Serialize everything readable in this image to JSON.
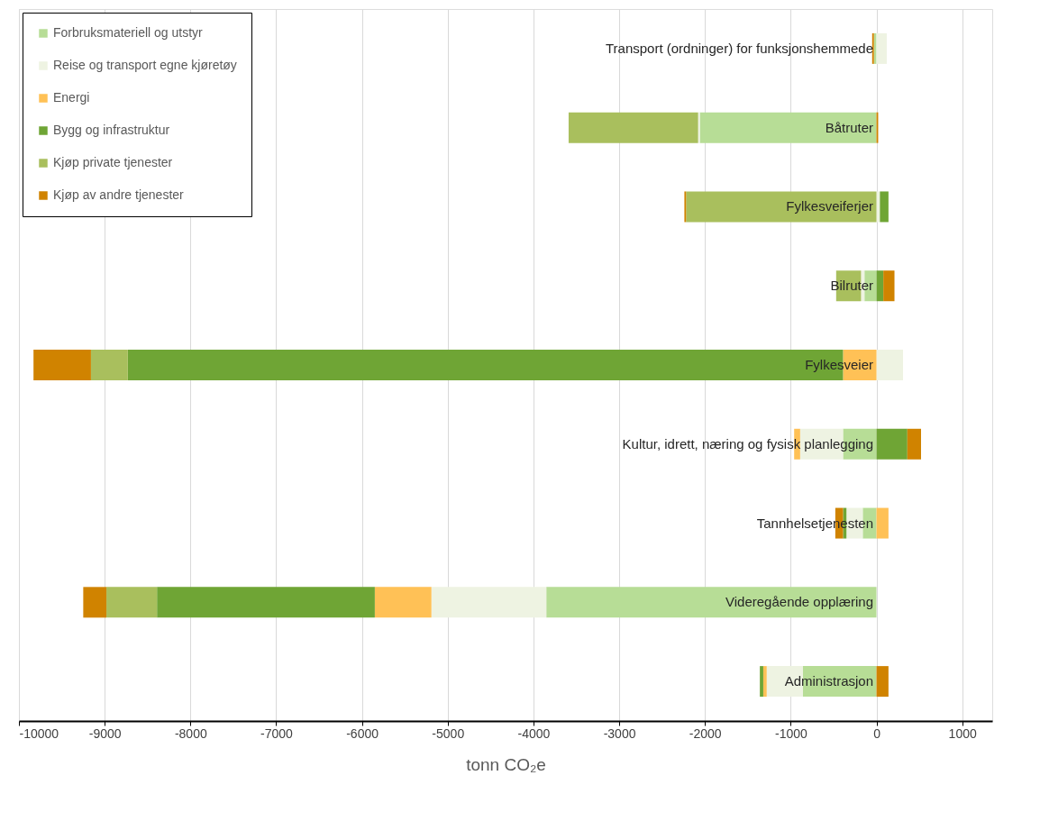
{
  "chart_data": {
    "type": "bar",
    "orientation": "horizontal",
    "stacked": true,
    "categories": [
      "Transport (ordninger) for funksjonshemmede",
      "Båtruter",
      "Fylkesveiferjer",
      "Bilruter",
      "Fylkesveier",
      "Kultur, idrett, næring og fysisk planlegging",
      "Tannhelsetjenesten",
      "Videregående opplæring",
      "Administrasjon"
    ],
    "series": [
      {
        "name": "Forbruksmateriell og utstyr",
        "color": "#b7dd96",
        "values": [
          -30,
          -2060,
          null,
          -140,
          null,
          -390,
          -160,
          -3850,
          -860
        ]
      },
      {
        "name": "Reise og transport egne kjøretøy",
        "color": "#eef3e2",
        "values": [
          120,
          -20,
          40,
          -40,
          310,
          -500,
          -190,
          -1340,
          -420
        ]
      },
      {
        "name": "Energi",
        "color": "#ffc156",
        "values": [
          null,
          null,
          null,
          null,
          -390,
          -70,
          140,
          -660,
          -40
        ]
      },
      {
        "name": "Bygg og infrastruktur",
        "color": "#6fa535",
        "values": [
          null,
          null,
          100,
          80,
          -8340,
          360,
          -40,
          -2540,
          -40
        ]
      },
      {
        "name": "Kjøp private tjenester",
        "color": "#a9bf5d",
        "values": [
          null,
          -1510,
          -2220,
          -290,
          -430,
          null,
          null,
          -590,
          null
        ]
      },
      {
        "name": "Kjøp av andre tjenester",
        "color": "#d08300",
        "values": [
          -20,
          20,
          -20,
          130,
          -670,
          160,
          -90,
          -270,
          140
        ]
      }
    ],
    "xlim": [
      -10000,
      1350
    ],
    "xticks": [
      {
        "value": -10000,
        "label": "-10000"
      },
      {
        "value": -9000,
        "label": "-9000"
      },
      {
        "value": -8000,
        "label": "-8000"
      },
      {
        "value": -7000,
        "label": "-7000"
      },
      {
        "value": -6000,
        "label": "-6000"
      },
      {
        "value": -5000,
        "label": "-5000"
      },
      {
        "value": -4000,
        "label": "-4000"
      },
      {
        "value": -3000,
        "label": "-3000"
      },
      {
        "value": -2000,
        "label": "-2000"
      },
      {
        "value": -1000,
        "label": "-1000"
      },
      0,
      {
        "value": 1000,
        "label": "1000"
      }
    ],
    "xlabel": "tonn CO₂e",
    "grid": "x",
    "legend": "top left"
  }
}
